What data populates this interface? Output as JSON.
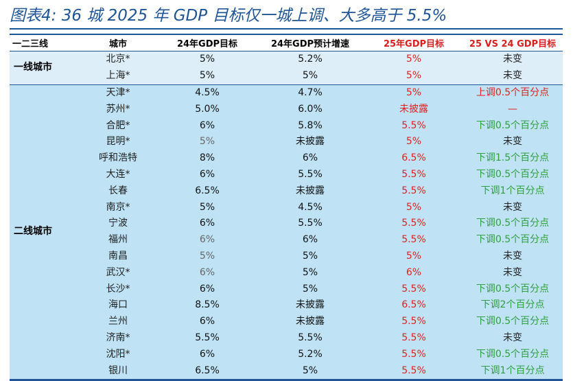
{
  "title": "图表4:  36 城 2025 年 GDP 目标仅一城上调、大多高于 5.5%",
  "colors": {
    "header_blue": "#1f5496",
    "tier1_bg": "#ddeef9",
    "tier2_bg": "#bfe3f4",
    "red": "#e02020",
    "green": "#2e9e3f"
  },
  "headers": [
    "一二三线",
    "城市",
    "24年GDP目标",
    "24年GDP预计增速",
    "25年GDP目标",
    "25 VS 24 GDP目标"
  ],
  "tiers": {
    "tier1": "一线城市",
    "tier2": "二线城市"
  },
  "rows": [
    {
      "city": "北京*",
      "t24": "5%",
      "g24": "5.2%",
      "t25": "5%",
      "cmp": "未变",
      "t24c": "dark",
      "g24c": "dark",
      "cmpc": "black"
    },
    {
      "city": "上海*",
      "t24": "5%",
      "g24": "5%",
      "t25": "5%",
      "cmp": "未变",
      "t24c": "dark",
      "g24c": "dark",
      "cmpc": "black"
    },
    {
      "city": "天津*",
      "t24": "4.5%",
      "g24": "4.7%",
      "t25": "5%",
      "cmp": "上调0.5个百分点",
      "t24c": "dark",
      "g24c": "dark",
      "cmpc": "redtxt"
    },
    {
      "city": "苏州*",
      "t24": "5.0%",
      "g24": "6.0%",
      "t25": "未披露",
      "cmp": "—",
      "t24c": "dark",
      "g24c": "dark",
      "cmpc": "redtxt"
    },
    {
      "city": "合肥*",
      "t24": "6%",
      "g24": "5.8%",
      "t25": "5.5%",
      "cmp": "下调0.5个百分点",
      "t24c": "dark",
      "g24c": "dark",
      "cmpc": "green"
    },
    {
      "city": "昆明*",
      "t24": "5%",
      "g24": "未披露",
      "t25": "5%",
      "cmp": "未变",
      "t24c": "grey",
      "g24c": "dark",
      "cmpc": "black"
    },
    {
      "city": "呼和浩特",
      "t24": "8%",
      "g24": "6%",
      "t25": "6.5%",
      "cmp": "下调1.5个百分点",
      "t24c": "dark",
      "g24c": "dark",
      "cmpc": "green"
    },
    {
      "city": "大连*",
      "t24": "6%",
      "g24": "5.5%",
      "t25": "5.5%",
      "cmp": "下调0.5个百分点",
      "t24c": "dark",
      "g24c": "dark",
      "cmpc": "green"
    },
    {
      "city": "长春",
      "t24": "6.5%",
      "g24": "未披露",
      "t25": "5.5%",
      "cmp": "下调1个百分点",
      "t24c": "dark",
      "g24c": "dark",
      "cmpc": "green"
    },
    {
      "city": "南京*",
      "t24": "5%",
      "g24": "4.5%",
      "t25": "5%",
      "cmp": "未变",
      "t24c": "dark",
      "g24c": "dark",
      "cmpc": "black"
    },
    {
      "city": "宁波",
      "t24": "6%",
      "g24": "5.5%",
      "t25": "5.5%",
      "cmp": "下调0.5个百分点",
      "t24c": "dark",
      "g24c": "dark",
      "cmpc": "green"
    },
    {
      "city": "福州",
      "t24": "6%",
      "g24": "6%",
      "t25": "5.5%",
      "cmp": "下调0.5个百分点",
      "t24c": "grey",
      "g24c": "dark",
      "cmpc": "green"
    },
    {
      "city": "南昌",
      "t24": "5%",
      "g24": "5%",
      "t25": "5%",
      "cmp": "未变",
      "t24c": "grey",
      "g24c": "dark",
      "cmpc": "black"
    },
    {
      "city": "武汉*",
      "t24": "6%",
      "g24": "5%",
      "t25": "6%",
      "cmp": "未变",
      "t24c": "grey",
      "g24c": "dark",
      "cmpc": "black"
    },
    {
      "city": "长沙*",
      "t24": "6%",
      "g24": "5%",
      "t25": "5.5%",
      "cmp": "下调0.5个百分点",
      "t24c": "dark",
      "g24c": "dark",
      "cmpc": "green"
    },
    {
      "city": "海口",
      "t24": "8.5%",
      "g24": "未披露",
      "t25": "6.5%",
      "cmp": "下调2个百分点",
      "t24c": "dark",
      "g24c": "dark",
      "cmpc": "green"
    },
    {
      "city": "兰州",
      "t24": "6%",
      "g24": "未披露",
      "t25": "5.5%",
      "cmp": "下调0.5个百分点",
      "t24c": "dark",
      "g24c": "dark",
      "cmpc": "green"
    },
    {
      "city": "济南*",
      "t24": "5.5%",
      "g24": "5.5%",
      "t25": "5.5%",
      "cmp": "未变",
      "t24c": "dark",
      "g24c": "dark",
      "cmpc": "black"
    },
    {
      "city": "沈阳*",
      "t24": "6%",
      "g24": "5.2%",
      "t25": "5.5%",
      "cmp": "下调0.5个百分点",
      "t24c": "dark",
      "g24c": "dark",
      "cmpc": "green"
    },
    {
      "city": "银川",
      "t24": "6.5%",
      "g24": "5%",
      "t25": "5.5%",
      "cmp": "下调1个百分点",
      "t24c": "dark",
      "g24c": "dark",
      "cmpc": "green"
    }
  ]
}
